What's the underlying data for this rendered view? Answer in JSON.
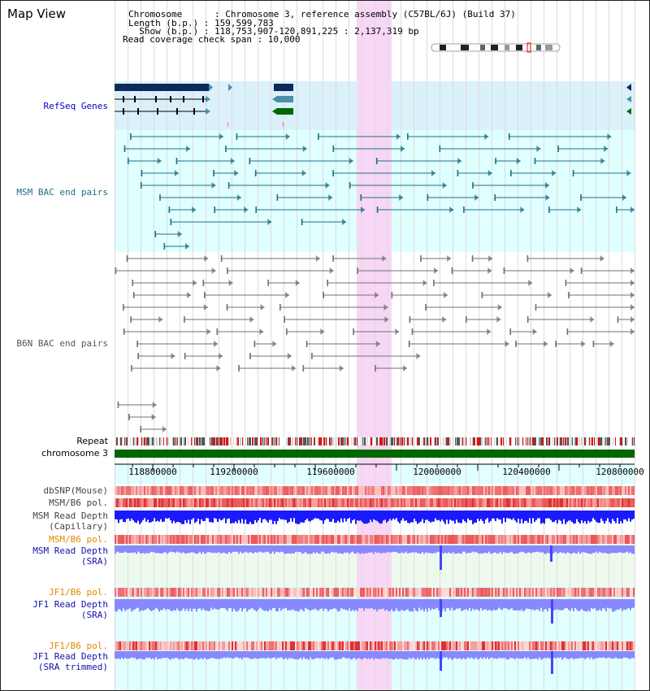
{
  "view": {
    "title": "Map View",
    "info": [
      "Chromosome      : Chromosome 3, reference assembly (C57BL/6J) (Build 37)",
      "Length (b.p.) : 159,599,783",
      "  Show (b.p.) : 118,753,907-120,891,225 : 2,137,319 bp",
      "Read coverage check span : 10,000"
    ]
  },
  "colors": {
    "refseq_bg": "#daf0fa",
    "bac_bg": "#e0ffff",
    "highlight": "#f7d7f5",
    "refseq": "#0a2a5a",
    "msm": "#1d6f85",
    "b6n": "#707070",
    "read_depth": "#1a1aff",
    "read_depth_light": "#8888ff",
    "chrom": "#006600"
  },
  "tracks": {
    "refseq_label": "RefSeq Genes",
    "msm_bac_label": "MSM BAC end pairs",
    "b6n_bac_label": "B6N BAC end pairs",
    "repeat_label": "Repeat",
    "chromosome_label": "chromosome 3",
    "dbsnp_label": "dbSNP(Mouse)",
    "msm_b6_pol_label": "MSM/B6 pol.",
    "msm_depth_cap_label_1": "MSM Read Depth",
    "msm_depth_cap_label_2": "(Capillary)",
    "msm_b6_pol2_label": "MSM/B6 pol.",
    "msm_depth_sra_label_1": "MSM Read Depth",
    "msm_depth_sra_label_2": "(SRA)",
    "jf1_b6_pol_label": "JF1/B6 pol.",
    "jf1_depth_sra_label_1": "JF1 Read Depth",
    "jf1_depth_sra_label_2": "(SRA)",
    "jf1_b6_pol2_label": "JF1/B6 pol.",
    "jf1_depth_trim_label_1": "JF1 Read Depth",
    "jf1_depth_trim_label_2": "(SRA trimmed)"
  },
  "axis": {
    "ticks": [
      "118800000",
      "119200000",
      "119600000",
      "120000000",
      "120400000",
      "120800000"
    ]
  }
}
